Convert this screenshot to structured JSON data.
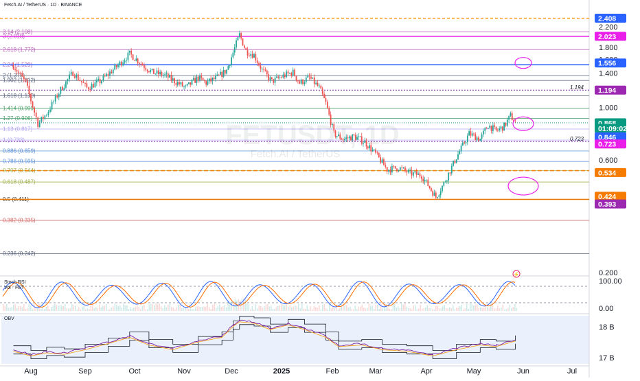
{
  "header": {
    "symbol_title": "Fetch.AI / TetherUS · 1D · BINANCE"
  },
  "watermark": {
    "ticker": "FETUSDT, 1D",
    "name": "Fetch.AI / TetherUS"
  },
  "colors": {
    "up": "#26a69a",
    "down": "#ef5350",
    "k": "#2962ff",
    "d": "#ff6d00",
    "obv": "#2962ff",
    "obv_ma": "#f5a623",
    "fib_pink": "#c05fc0",
    "accent_magenta": "#e91ee9"
  },
  "chart_data": [
    {
      "type": "candlestick",
      "title": "Fetch.AI / TetherUS · 1D · BINANCE",
      "x_ticks": [
        "Aug",
        "Sep",
        "Oct",
        "Nov",
        "Dec",
        "2025",
        "Feb",
        "Mar",
        "Apr",
        "May",
        "Jun",
        "Jul"
      ],
      "y_ticks": [
        "2.200",
        "1.800",
        "1.600",
        "1.400",
        "1.000",
        "0.600",
        "0.200"
      ],
      "y_scale": "log",
      "ylim": [
        0.2,
        2.408
      ],
      "date_range": [
        "2024-07-22",
        "2025-05-27"
      ],
      "path_points": [
        [
          "2024-07-22",
          1.52
        ],
        [
          "2024-07-29",
          1.28
        ],
        [
          "2024-08-05",
          0.86
        ],
        [
          "2024-08-10",
          0.95
        ],
        [
          "2024-08-18",
          1.2
        ],
        [
          "2024-08-25",
          1.42
        ],
        [
          "2024-09-02",
          1.22
        ],
        [
          "2024-09-10",
          1.3
        ],
        [
          "2024-09-20",
          1.5
        ],
        [
          "2024-09-28",
          1.7
        ],
        [
          "2024-10-05",
          1.55
        ],
        [
          "2024-10-12",
          1.42
        ],
        [
          "2024-10-20",
          1.38
        ],
        [
          "2024-10-28",
          1.28
        ],
        [
          "2024-11-02",
          1.22
        ],
        [
          "2024-11-10",
          1.35
        ],
        [
          "2024-11-15",
          1.28
        ],
        [
          "2024-11-22",
          1.35
        ],
        [
          "2024-11-28",
          1.45
        ],
        [
          "2024-12-02",
          1.72
        ],
        [
          "2024-12-06",
          2.05
        ],
        [
          "2024-12-10",
          1.75
        ],
        [
          "2024-12-15",
          1.68
        ],
        [
          "2024-12-20",
          1.45
        ],
        [
          "2024-12-26",
          1.3
        ],
        [
          "2025-01-03",
          1.38
        ],
        [
          "2025-01-08",
          1.42
        ],
        [
          "2025-01-12",
          1.28
        ],
        [
          "2025-01-18",
          1.35
        ],
        [
          "2025-01-24",
          1.22
        ],
        [
          "2025-01-28",
          1.05
        ],
        [
          "2025-02-02",
          0.78
        ],
        [
          "2025-02-08",
          0.74
        ],
        [
          "2025-02-15",
          0.76
        ],
        [
          "2025-02-22",
          0.72
        ],
        [
          "2025-03-01",
          0.64
        ],
        [
          "2025-03-08",
          0.55
        ],
        [
          "2025-03-15",
          0.56
        ],
        [
          "2025-03-22",
          0.53
        ],
        [
          "2025-03-29",
          0.52
        ],
        [
          "2025-04-07",
          0.42
        ],
        [
          "2025-04-12",
          0.48
        ],
        [
          "2025-04-20",
          0.62
        ],
        [
          "2025-04-28",
          0.78
        ],
        [
          "2025-05-05",
          0.74
        ],
        [
          "2025-05-10",
          0.85
        ],
        [
          "2025-05-15",
          0.8
        ],
        [
          "2025-05-20",
          0.84
        ],
        [
          "2025-05-24",
          0.93
        ],
        [
          "2025-05-27",
          0.868
        ]
      ],
      "fib_levels": [
        {
          "label": "3.14 (2.108)",
          "price": 2.108
        },
        {
          "label": "3 (2.018)",
          "price": 2.018
        },
        {
          "label": "2.618 (1.772)",
          "price": 1.772
        },
        {
          "label": "2.24 (1.529)",
          "price": 1.529
        },
        {
          "label": "2 (1.375)",
          "price": 1.375
        },
        {
          "label": "1.902 (1.312)",
          "price": 1.312
        },
        {
          "label": "1.618 (1.130)",
          "price": 1.13
        },
        {
          "label": "1.414 (0.999)",
          "price": 0.999
        },
        {
          "label": "1.27 (0.906)",
          "price": 0.906
        },
        {
          "label": "1.13 (0.817)",
          "price": 0.817
        },
        {
          "label": "1 (0.733)",
          "price": 0.733
        },
        {
          "label": "0.886 (0.659)",
          "price": 0.659
        },
        {
          "label": "0.786 (0.595)",
          "price": 0.595
        },
        {
          "label": "0.707 (0.544)",
          "price": 0.544
        },
        {
          "label": "0.618 (0.487)",
          "price": 0.487
        },
        {
          "label": "0.5 (0.411)",
          "price": 0.411
        },
        {
          "label": "0.382 (0.335)",
          "price": 0.335
        },
        {
          "label": "0.236 (0.242)",
          "price": 0.242
        }
      ],
      "dotted_levels": [
        {
          "price": 1.194,
          "label": "1.194"
        },
        {
          "price": 0.723,
          "label": "0.723"
        }
      ],
      "price_badges": [
        {
          "text": "2.408",
          "price": 2.408,
          "color": "#2962ff"
        },
        {
          "text": "2.023",
          "price": 2.018,
          "color": "#e91ee9"
        },
        {
          "text": "1.556",
          "price": 1.556,
          "color": "#2962ff"
        },
        {
          "text": "1.194",
          "price": 1.194,
          "color": "#9c27b0"
        },
        {
          "text": "0.868",
          "price": 0.868,
          "color": "#089981"
        },
        {
          "text": "01:09:02",
          "price": 0.822,
          "color": "#089981"
        },
        {
          "text": "0.846",
          "price": 0.757,
          "color": "#2962ff"
        },
        {
          "text": "0.723",
          "price": 0.706,
          "color": "#e91ee9"
        },
        {
          "text": "0.534",
          "price": 0.534,
          "color": "#f57c00"
        },
        {
          "text": "0.424",
          "price": 0.424,
          "color": "#f57c00"
        },
        {
          "text": "0.393",
          "price": 0.393,
          "color": "#9c27b0"
        }
      ]
    },
    {
      "type": "line",
      "title": "Stoch RSI",
      "legend": [
        "Stoch RSI",
        "Vol · FET"
      ],
      "y_ticks": [
        "100.00",
        "0.00"
      ],
      "ylim": [
        0,
        100
      ]
    },
    {
      "type": "line",
      "title": "OBV",
      "y_ticks": [
        "18 B",
        "17 B"
      ],
      "ylim": [
        16.8,
        18.35
      ],
      "series": [
        {
          "values": [
            [
              "2024-07-22",
              17.25
            ],
            [
              "2024-08-01",
              17.1
            ],
            [
              "2024-08-10",
              17.2
            ],
            [
              "2024-08-20",
              17.15
            ],
            [
              "2024-09-01",
              17.3
            ],
            [
              "2024-09-15",
              17.5
            ],
            [
              "2024-09-28",
              17.7
            ],
            [
              "2024-10-10",
              17.45
            ],
            [
              "2024-10-25",
              17.3
            ],
            [
              "2024-11-10",
              17.55
            ],
            [
              "2024-11-25",
              17.7
            ],
            [
              "2024-12-02",
              18.05
            ],
            [
              "2024-12-06",
              18.2
            ],
            [
              "2024-12-15",
              18.15
            ],
            [
              "2024-12-25",
              17.95
            ],
            [
              "2025-01-05",
              18.1
            ],
            [
              "2025-01-15",
              17.95
            ],
            [
              "2025-01-28",
              17.7
            ],
            [
              "2025-02-05",
              17.4
            ],
            [
              "2025-02-20",
              17.45
            ],
            [
              "2025-03-05",
              17.3
            ],
            [
              "2025-03-20",
              17.25
            ],
            [
              "2025-04-05",
              17.1
            ],
            [
              "2025-04-20",
              17.3
            ],
            [
              "2025-05-05",
              17.45
            ],
            [
              "2025-05-15",
              17.4
            ],
            [
              "2025-05-27",
              17.58
            ]
          ]
        }
      ]
    }
  ]
}
